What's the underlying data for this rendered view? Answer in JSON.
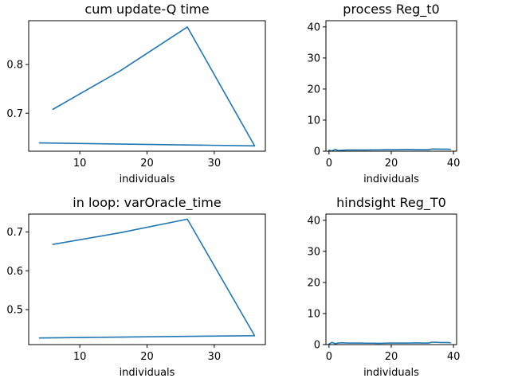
{
  "chart_data": [
    {
      "type": "line",
      "title": "cum update-Q time",
      "xlabel": "individuals",
      "ylabel": "",
      "xlim": [
        2.4,
        37.6
      ],
      "ylim": [
        0.622,
        0.89
      ],
      "xticks": [
        10,
        20,
        30
      ],
      "yticks": [
        0.7,
        0.8
      ],
      "xtick_labels": [
        "10",
        "20",
        "30"
      ],
      "ytick_labels": [
        "0.7",
        "0.8"
      ],
      "grid": false,
      "color": "#1f77b4",
      "series": [
        {
          "x": [
            6,
            16,
            26,
            36,
            4
          ],
          "y": [
            0.708,
            0.787,
            0.877,
            0.633,
            0.639
          ]
        }
      ]
    },
    {
      "type": "line",
      "title": "process Reg_t0",
      "xlabel": "individuals",
      "ylabel": "",
      "xlim": [
        -1,
        41
      ],
      "ylim": [
        0,
        42
      ],
      "xticks": [
        0,
        20,
        40
      ],
      "yticks": [
        0,
        10,
        20,
        30,
        40
      ],
      "xtick_labels": [
        "0",
        "20",
        "40"
      ],
      "ytick_labels": [
        "0",
        "10",
        "20",
        "30",
        "40"
      ],
      "grid": false,
      "color": "#1f77b4",
      "series": [
        {
          "x": [
            0,
            1,
            2,
            3,
            4,
            6,
            8,
            10,
            12,
            14,
            16,
            18,
            20,
            22,
            24,
            26,
            28,
            30,
            32,
            33,
            34,
            36,
            38,
            39
          ],
          "y": [
            0.3,
            0.1,
            0.6,
            0.2,
            0.3,
            0.4,
            0.4,
            0.4,
            0.4,
            0.45,
            0.45,
            0.5,
            0.5,
            0.5,
            0.55,
            0.55,
            0.5,
            0.5,
            0.5,
            0.7,
            0.7,
            0.65,
            0.65,
            0.6
          ]
        }
      ]
    },
    {
      "type": "line",
      "title": "in loop: varOracle_time",
      "xlabel": "individuals",
      "ylabel": "",
      "xlim": [
        2.4,
        37.6
      ],
      "ylim": [
        0.41,
        0.746
      ],
      "xticks": [
        10,
        20,
        30
      ],
      "yticks": [
        0.5,
        0.6,
        0.7
      ],
      "xtick_labels": [
        "10",
        "20",
        "30"
      ],
      "ytick_labels": [
        "0.5",
        "0.6",
        "0.7"
      ],
      "grid": false,
      "color": "#1f77b4",
      "series": [
        {
          "x": [
            6,
            16,
            26,
            36,
            4
          ],
          "y": [
            0.668,
            0.698,
            0.733,
            0.433,
            0.427
          ]
        }
      ]
    },
    {
      "type": "line",
      "title": "hindsight Reg_T0",
      "xlabel": "individuals",
      "ylabel": "",
      "xlim": [
        -1,
        41
      ],
      "ylim": [
        0,
        42
      ],
      "xticks": [
        0,
        20,
        40
      ],
      "yticks": [
        0,
        10,
        20,
        30,
        40
      ],
      "xtick_labels": [
        "0",
        "20",
        "40"
      ],
      "ytick_labels": [
        "0",
        "10",
        "20",
        "30",
        "40"
      ],
      "grid": false,
      "color": "#1f77b4",
      "series": [
        {
          "x": [
            0,
            1,
            2,
            3,
            4,
            6,
            8,
            10,
            12,
            14,
            16,
            18,
            20,
            22,
            24,
            26,
            28,
            30,
            32,
            33,
            34,
            36,
            38,
            39
          ],
          "y": [
            0.2,
            0.7,
            0.3,
            0.5,
            0.6,
            0.5,
            0.5,
            0.5,
            0.45,
            0.45,
            0.4,
            0.45,
            0.5,
            0.5,
            0.5,
            0.5,
            0.55,
            0.5,
            0.5,
            0.75,
            0.75,
            0.65,
            0.65,
            0.6
          ]
        }
      ]
    }
  ]
}
